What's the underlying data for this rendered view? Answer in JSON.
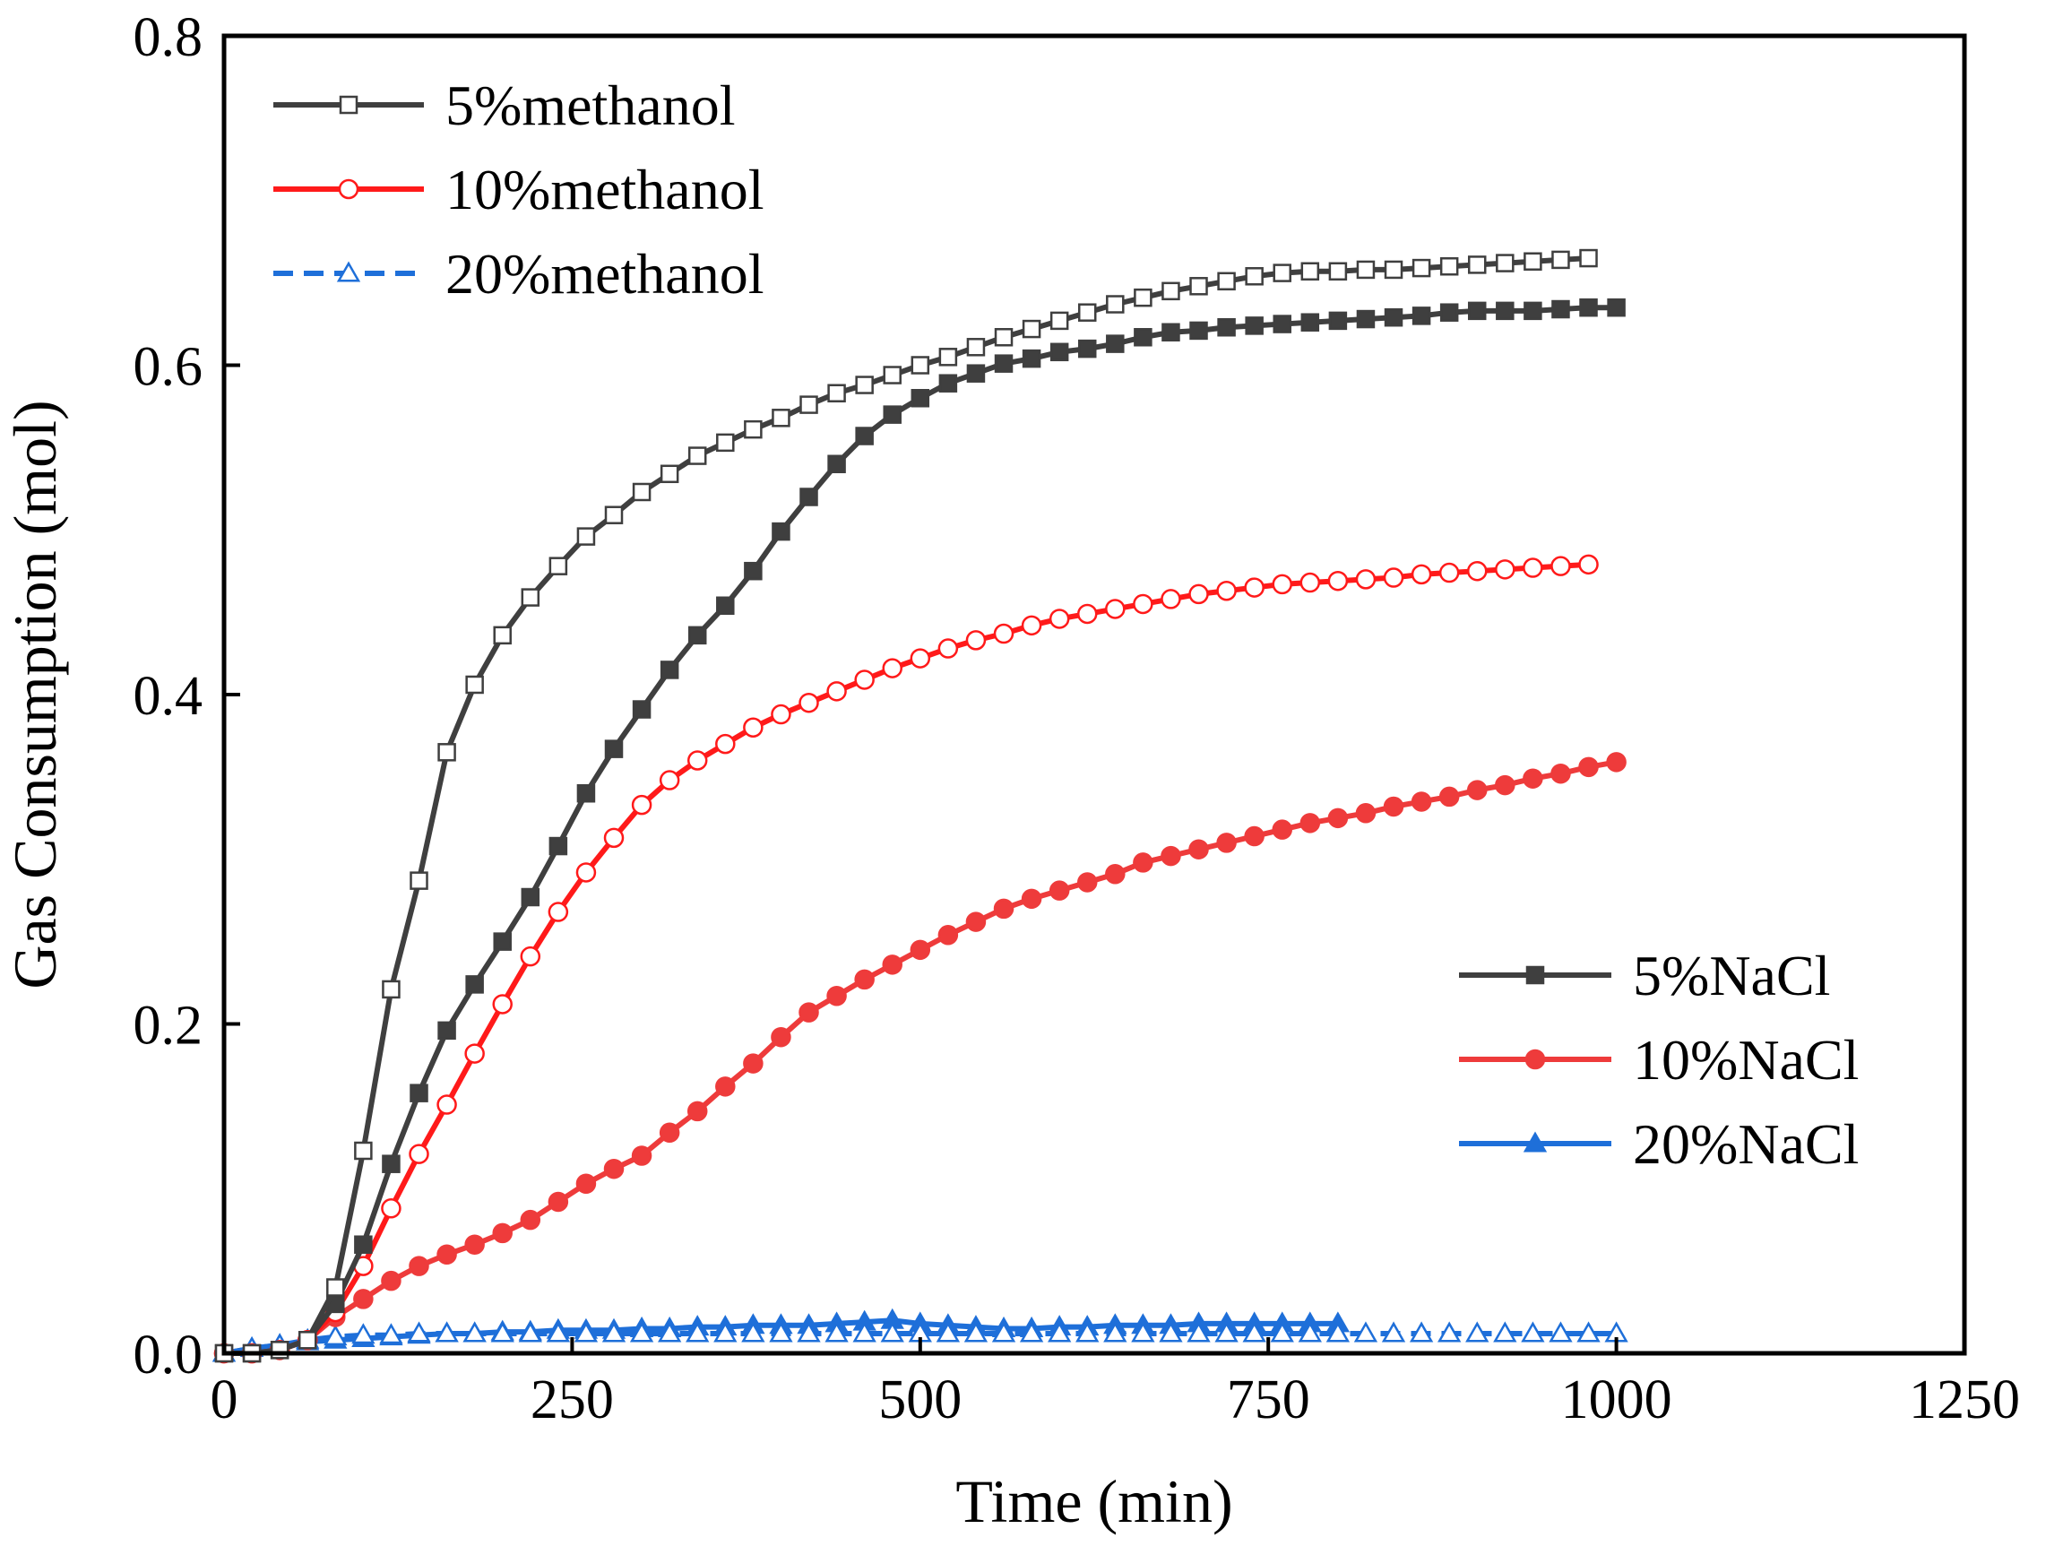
{
  "colors": {
    "black_series": "#3f3f3f",
    "red_series": "#ff1a1a",
    "red_nacl": "#ee3b3b",
    "blue_series": "#1e6fd9",
    "axis": "#000000"
  },
  "chart_data": {
    "type": "line",
    "xlabel": "Time (min)",
    "ylabel": "Gas Consumption (mol)",
    "xlim": [
      0,
      1250
    ],
    "ylim": [
      0,
      0.8
    ],
    "xticks": [
      0,
      250,
      500,
      750,
      1000,
      1250
    ],
    "yticks": [
      0.0,
      0.2,
      0.4,
      0.6,
      0.8
    ],
    "xtick_labels": [
      "0",
      "250",
      "500",
      "750",
      "1000",
      "1250"
    ],
    "ytick_labels": [
      "0.0",
      "0.2",
      "0.4",
      "0.6",
      "0.8"
    ],
    "legend_methanol": {
      "placement": "top-left",
      "entries": [
        "5%methanol",
        "10%methanol",
        "20%methanol"
      ]
    },
    "legend_nacl": {
      "placement": "middle-right",
      "entries": [
        "5%NaCl",
        "10%NaCl",
        "20%NaCl"
      ]
    },
    "series": [
      {
        "name": "5%methanol",
        "color": "#3f3f3f",
        "marker": "square-open",
        "x": [
          0,
          20,
          40,
          60,
          80,
          100,
          120,
          140,
          160,
          180,
          200,
          220,
          240,
          260,
          280,
          300,
          320,
          340,
          360,
          380,
          400,
          420,
          440,
          460,
          480,
          500,
          520,
          540,
          560,
          580,
          600,
          620,
          640,
          660,
          680,
          700,
          720,
          740,
          760,
          780,
          800,
          820,
          840,
          860,
          880,
          900,
          920,
          940,
          960,
          980
        ],
        "y": [
          0.0,
          0.0,
          0.002,
          0.008,
          0.04,
          0.123,
          0.221,
          0.287,
          0.365,
          0.406,
          0.436,
          0.459,
          0.478,
          0.496,
          0.509,
          0.523,
          0.534,
          0.545,
          0.553,
          0.561,
          0.568,
          0.576,
          0.583,
          0.588,
          0.594,
          0.6,
          0.605,
          0.611,
          0.617,
          0.622,
          0.627,
          0.632,
          0.637,
          0.641,
          0.645,
          0.648,
          0.651,
          0.654,
          0.656,
          0.657,
          0.657,
          0.658,
          0.658,
          0.659,
          0.66,
          0.661,
          0.662,
          0.663,
          0.664,
          0.665
        ]
      },
      {
        "name": "10%methanol",
        "color": "#ff1a1a",
        "marker": "circle-open",
        "x": [
          0,
          20,
          40,
          60,
          80,
          100,
          120,
          140,
          160,
          180,
          200,
          220,
          240,
          260,
          280,
          300,
          320,
          340,
          360,
          380,
          400,
          420,
          440,
          460,
          480,
          500,
          520,
          540,
          560,
          580,
          600,
          620,
          640,
          660,
          680,
          700,
          720,
          740,
          760,
          780,
          800,
          820,
          840,
          860,
          880,
          900,
          920,
          940,
          960,
          980
        ],
        "y": [
          0.0,
          0.0,
          0.002,
          0.008,
          0.025,
          0.053,
          0.088,
          0.121,
          0.151,
          0.182,
          0.212,
          0.241,
          0.268,
          0.292,
          0.313,
          0.333,
          0.348,
          0.36,
          0.37,
          0.38,
          0.388,
          0.395,
          0.402,
          0.409,
          0.416,
          0.422,
          0.428,
          0.433,
          0.437,
          0.442,
          0.446,
          0.449,
          0.452,
          0.455,
          0.458,
          0.461,
          0.463,
          0.465,
          0.467,
          0.468,
          0.469,
          0.47,
          0.471,
          0.473,
          0.474,
          0.475,
          0.476,
          0.477,
          0.478,
          0.479
        ]
      },
      {
        "name": "20%methanol",
        "color": "#1e6fd9",
        "marker": "triangle-open",
        "dashed": true,
        "x": [
          0,
          20,
          40,
          60,
          80,
          100,
          120,
          140,
          160,
          180,
          200,
          220,
          240,
          260,
          280,
          300,
          320,
          340,
          360,
          380,
          400,
          420,
          440,
          460,
          480,
          500,
          520,
          540,
          560,
          580,
          600,
          620,
          640,
          660,
          680,
          700,
          720,
          740,
          760,
          780,
          800,
          820,
          840,
          860,
          880,
          900,
          920,
          940,
          960,
          980,
          1000
        ],
        "y": [
          0.0,
          0.003,
          0.005,
          0.008,
          0.01,
          0.011,
          0.011,
          0.012,
          0.012,
          0.012,
          0.012,
          0.012,
          0.012,
          0.012,
          0.012,
          0.012,
          0.012,
          0.012,
          0.012,
          0.012,
          0.012,
          0.012,
          0.012,
          0.012,
          0.012,
          0.012,
          0.012,
          0.012,
          0.012,
          0.012,
          0.012,
          0.012,
          0.012,
          0.012,
          0.012,
          0.012,
          0.012,
          0.012,
          0.012,
          0.012,
          0.012,
          0.012,
          0.012,
          0.012,
          0.012,
          0.012,
          0.012,
          0.012,
          0.012,
          0.012,
          0.012
        ]
      },
      {
        "name": "5%NaCl",
        "color": "#3f3f3f",
        "marker": "square-filled",
        "x": [
          0,
          20,
          40,
          60,
          80,
          100,
          120,
          140,
          160,
          180,
          200,
          220,
          240,
          260,
          280,
          300,
          320,
          340,
          360,
          380,
          400,
          420,
          440,
          460,
          480,
          500,
          520,
          540,
          560,
          580,
          600,
          620,
          640,
          660,
          680,
          700,
          720,
          740,
          760,
          780,
          800,
          820,
          840,
          860,
          880,
          900,
          920,
          940,
          960,
          980,
          1000
        ],
        "y": [
          0.0,
          0.0,
          0.002,
          0.008,
          0.03,
          0.066,
          0.115,
          0.158,
          0.196,
          0.224,
          0.25,
          0.277,
          0.308,
          0.34,
          0.367,
          0.391,
          0.415,
          0.436,
          0.454,
          0.475,
          0.499,
          0.52,
          0.54,
          0.557,
          0.57,
          0.58,
          0.589,
          0.595,
          0.601,
          0.604,
          0.608,
          0.61,
          0.613,
          0.617,
          0.62,
          0.621,
          0.623,
          0.624,
          0.625,
          0.626,
          0.627,
          0.628,
          0.629,
          0.63,
          0.632,
          0.633,
          0.633,
          0.633,
          0.634,
          0.635,
          0.635
        ]
      },
      {
        "name": "10%NaCl",
        "color": "#ee3b3b",
        "marker": "circle-filled",
        "x": [
          0,
          20,
          40,
          60,
          80,
          100,
          120,
          140,
          160,
          180,
          200,
          220,
          240,
          260,
          280,
          300,
          320,
          340,
          360,
          380,
          400,
          420,
          440,
          460,
          480,
          500,
          520,
          540,
          560,
          580,
          600,
          620,
          640,
          660,
          680,
          700,
          720,
          740,
          760,
          780,
          800,
          820,
          840,
          860,
          880,
          900,
          920,
          940,
          960,
          980,
          1000
        ],
        "y": [
          0.0,
          0.0,
          0.002,
          0.008,
          0.022,
          0.033,
          0.044,
          0.053,
          0.06,
          0.066,
          0.073,
          0.081,
          0.092,
          0.103,
          0.112,
          0.12,
          0.134,
          0.147,
          0.162,
          0.176,
          0.192,
          0.207,
          0.217,
          0.227,
          0.236,
          0.245,
          0.254,
          0.262,
          0.27,
          0.276,
          0.281,
          0.286,
          0.291,
          0.298,
          0.302,
          0.306,
          0.31,
          0.314,
          0.318,
          0.322,
          0.325,
          0.328,
          0.332,
          0.335,
          0.338,
          0.342,
          0.345,
          0.349,
          0.352,
          0.356,
          0.359
        ]
      },
      {
        "name": "20%NaCl",
        "color": "#1e6fd9",
        "marker": "triangle-filled",
        "x": [
          0,
          20,
          40,
          60,
          80,
          100,
          120,
          140,
          160,
          180,
          200,
          220,
          240,
          260,
          280,
          300,
          320,
          340,
          360,
          380,
          400,
          420,
          440,
          460,
          480,
          500,
          520,
          540,
          560,
          580,
          600,
          620,
          640,
          660,
          680,
          700,
          720,
          740,
          760,
          780,
          800
        ],
        "y": [
          0.0,
          0.003,
          0.005,
          0.007,
          0.008,
          0.009,
          0.01,
          0.011,
          0.012,
          0.012,
          0.013,
          0.013,
          0.014,
          0.014,
          0.014,
          0.015,
          0.015,
          0.016,
          0.016,
          0.017,
          0.017,
          0.017,
          0.018,
          0.019,
          0.02,
          0.018,
          0.017,
          0.016,
          0.015,
          0.015,
          0.016,
          0.016,
          0.017,
          0.017,
          0.017,
          0.018,
          0.018,
          0.018,
          0.018,
          0.018,
          0.018
        ]
      }
    ]
  }
}
